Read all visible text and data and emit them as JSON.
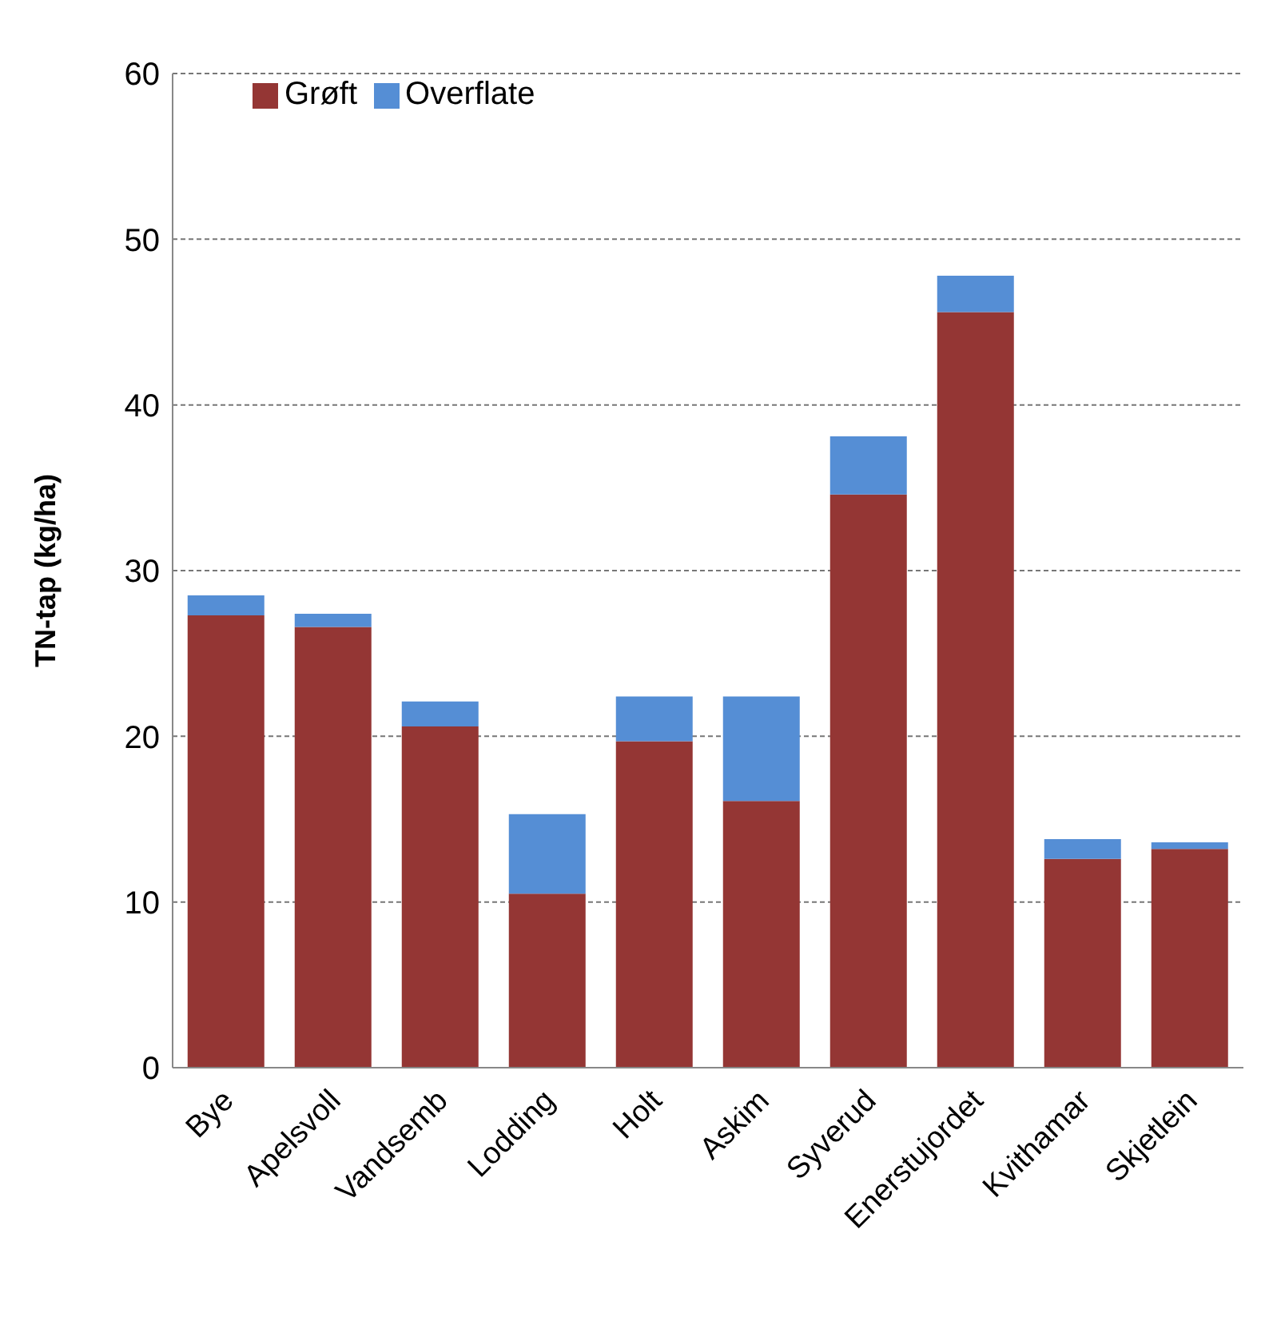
{
  "chart_data": {
    "type": "bar",
    "stacked": true,
    "ylabel": "TN-tap (kg/ha)",
    "categories": [
      "Bye",
      "Apelsvoll",
      "Vandsemb",
      "Lodding",
      "Holt",
      "Askim",
      "Syverud",
      "Enerstujordet",
      "Kvithamar",
      "Skjetlein"
    ],
    "series": [
      {
        "name": "Grøft",
        "color": "#943634",
        "values": [
          27.3,
          26.6,
          20.6,
          10.5,
          19.7,
          16.1,
          34.6,
          45.6,
          12.6,
          13.2
        ]
      },
      {
        "name": "Overflate",
        "color": "#558ed5",
        "values": [
          1.2,
          0.8,
          1.5,
          4.8,
          2.7,
          6.3,
          3.5,
          2.2,
          1.2,
          0.4
        ]
      }
    ],
    "ylim": [
      0,
      60
    ],
    "yticks": [
      0,
      10,
      20,
      30,
      40,
      50,
      60
    ],
    "grid": "y",
    "legend": "top left"
  }
}
